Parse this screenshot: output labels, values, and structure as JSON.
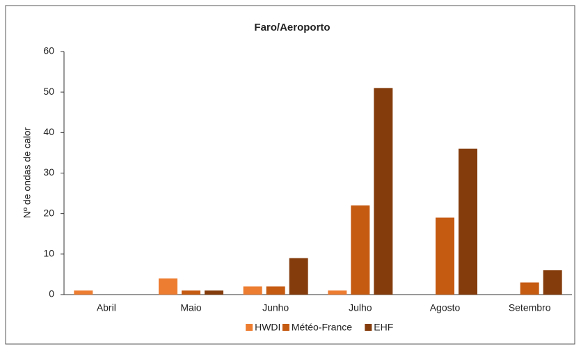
{
  "chart_data": {
    "type": "bar",
    "title": "Faro/Aeroporto",
    "y_label": "Nº de ondas de calor",
    "categories": [
      "Abril",
      "Maio",
      "Junho",
      "Julho",
      "Agosto",
      "Setembro"
    ],
    "series": [
      {
        "name": "HWDI",
        "color": "#ed7d31",
        "values": [
          1,
          4,
          2,
          1,
          0,
          0
        ]
      },
      {
        "name": "Météo-France",
        "color": "#c55a11",
        "values": [
          0,
          1,
          2,
          22,
          19,
          3
        ]
      },
      {
        "name": "EHF",
        "color": "#843c0c",
        "values": [
          0,
          1,
          9,
          51,
          36,
          6
        ]
      }
    ],
    "ylim": [
      0,
      60
    ],
    "yticks": [
      0,
      10,
      20,
      30,
      40,
      50,
      60
    ],
    "grid": false,
    "legend": "bottom"
  }
}
